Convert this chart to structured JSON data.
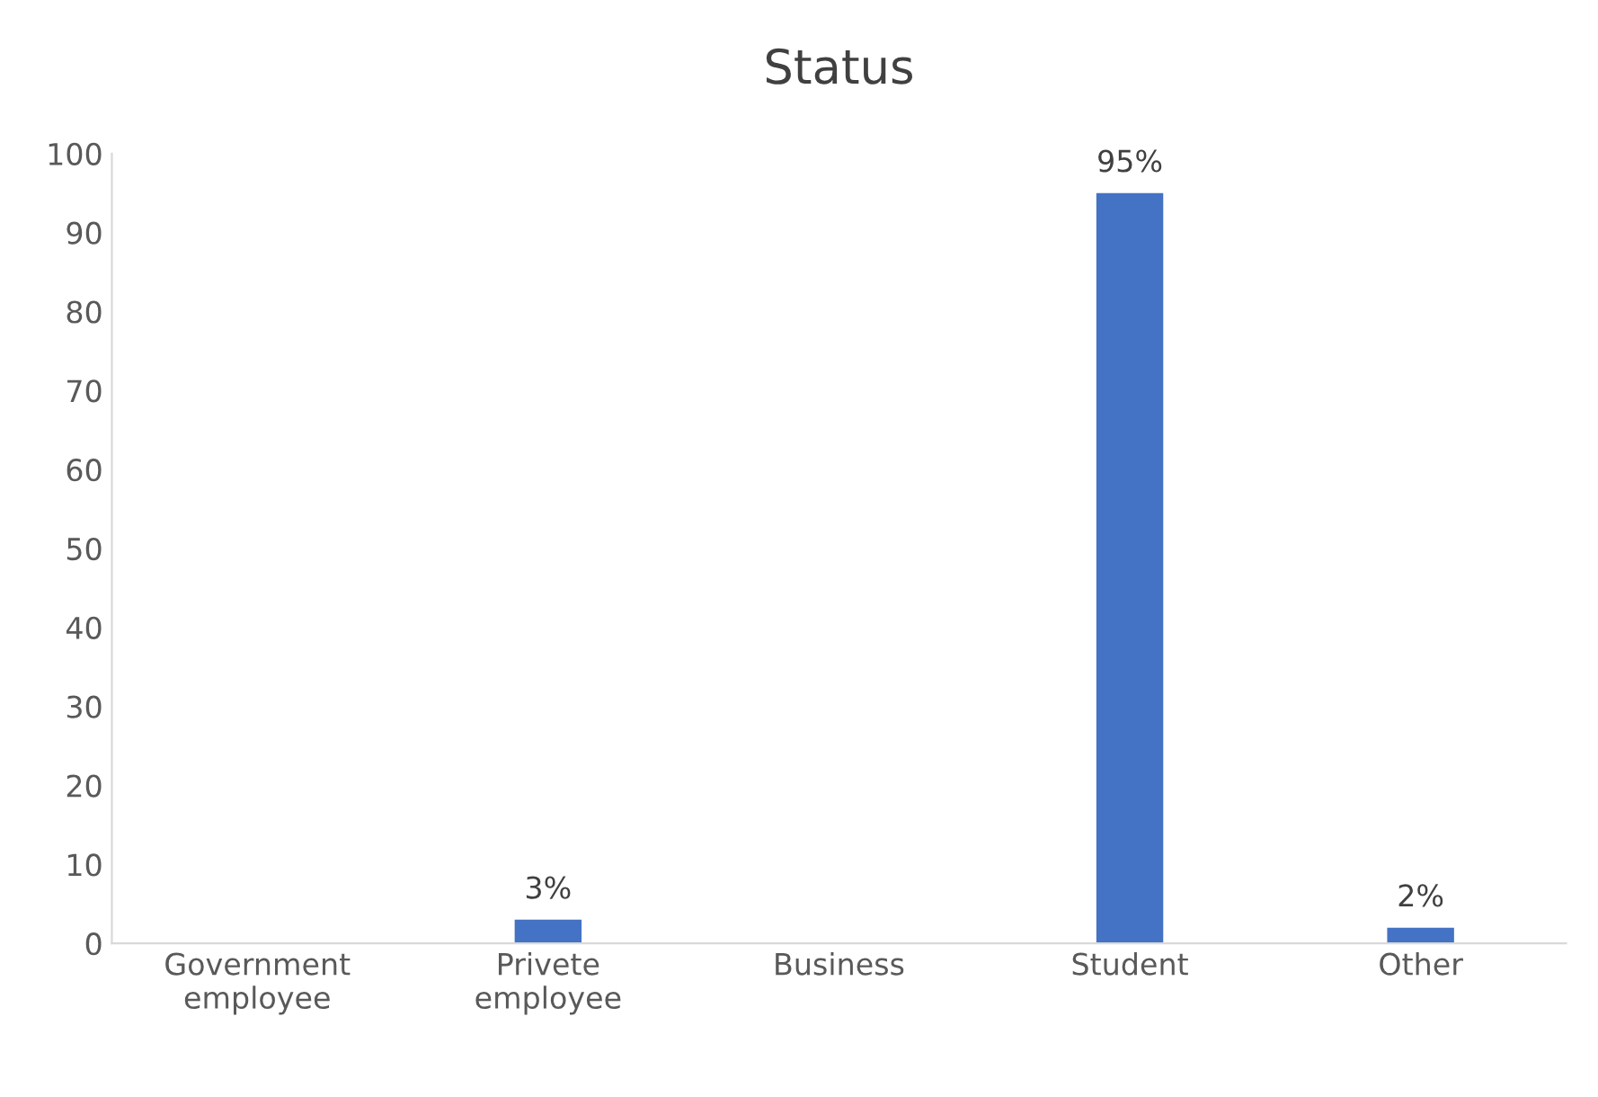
{
  "chart_data": {
    "type": "bar",
    "title": "Status",
    "categories": [
      "Government\nemployee",
      "Privete\nemployee",
      "Business",
      "Student",
      "Other"
    ],
    "values": [
      0,
      3,
      0,
      95,
      2
    ],
    "value_labels": [
      null,
      "3%",
      null,
      "95%",
      "2%"
    ],
    "color": "#4472c4",
    "ylim": [
      0,
      100
    ],
    "yticks": [
      0,
      10,
      20,
      30,
      40,
      50,
      60,
      70,
      80,
      90,
      100
    ],
    "grid": false
  }
}
